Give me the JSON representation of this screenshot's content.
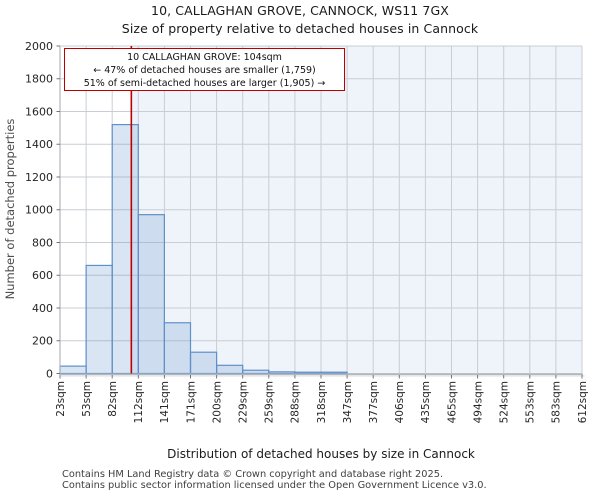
{
  "title": "10, CALLAGHAN GROVE, CANNOCK, WS11 7GX",
  "subtitle": "Size of property relative to detached houses in Cannock",
  "annotation": {
    "line1": "10 CALLAGHAN GROVE: 104sqm",
    "line2": "← 47% of detached houses are smaller (1,759)",
    "line3": "51% of semi-detached houses are larger (1,905) →"
  },
  "footer": {
    "line1": "Contains HM Land Registry data © Crown copyright and database right 2025.",
    "line2": "Contains public sector information licensed under the Open Government Licence v3.0."
  },
  "chart_data": {
    "type": "bar",
    "title": "Size of property relative to detached houses in Cannock",
    "xlabel": "Distribution of detached houses by size in Cannock",
    "ylabel": "Number of detached properties",
    "bin_edges_sqm": [
      23,
      53,
      82,
      112,
      141,
      171,
      200,
      229,
      259,
      288,
      318,
      347,
      377,
      406,
      435,
      465,
      494,
      524,
      553,
      583,
      612
    ],
    "bin_labels": [
      "23sqm",
      "53sqm",
      "82sqm",
      "112sqm",
      "141sqm",
      "171sqm",
      "200sqm",
      "229sqm",
      "259sqm",
      "288sqm",
      "318sqm",
      "347sqm",
      "377sqm",
      "406sqm",
      "435sqm",
      "465sqm",
      "494sqm",
      "524sqm",
      "553sqm",
      "583sqm",
      "612sqm"
    ],
    "values": [
      45,
      660,
      1520,
      970,
      310,
      130,
      50,
      20,
      10,
      8,
      8,
      0,
      0,
      0,
      0,
      0,
      0,
      0,
      0,
      0
    ],
    "ylim": [
      0,
      2000
    ],
    "y_ticks": [
      0,
      200,
      400,
      600,
      800,
      1000,
      1200,
      1400,
      1600,
      1800,
      2000
    ],
    "grid": true,
    "legend": "none",
    "marker": {
      "sqm": 104,
      "description": "subject property size"
    },
    "colors": {
      "bar_edge": "#6090c8",
      "bar_fill": "rgba(98,146,204,0.24)",
      "marker_line": "#bb0000",
      "annotation_border": "#bb0000",
      "shade_region": "#eff3fa",
      "gridline": "#c9cdd4",
      "spine": "#b3b6bc",
      "spine_shadow": "#dcdee2",
      "tick": "#70747a",
      "tick_text": "#262626"
    }
  }
}
